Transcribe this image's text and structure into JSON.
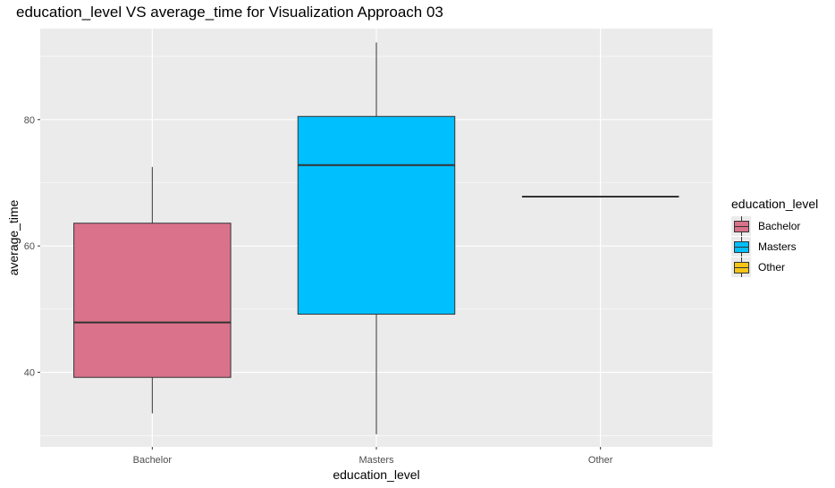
{
  "chart_data": {
    "type": "boxplot",
    "title": "education_level VS average_time for Visualization Approach 03",
    "xlabel": "education_level",
    "ylabel": "average_time",
    "categories": [
      "Bachelor",
      "Masters",
      "Other"
    ],
    "boxes": [
      {
        "category": "Bachelor",
        "min": 33.5,
        "q1": 39.2,
        "median": 47.9,
        "q3": 63.6,
        "max": 72.5,
        "color": "#d9728a"
      },
      {
        "category": "Masters",
        "min": 30.2,
        "q1": 49.2,
        "median": 72.8,
        "q3": 80.5,
        "max": 92.2,
        "color": "#00bfff"
      },
      {
        "category": "Other",
        "min": 67.8,
        "q1": 67.8,
        "median": 67.8,
        "q3": 67.8,
        "max": 67.8,
        "color": "#f5c518"
      }
    ],
    "y_ticks": [
      40,
      60,
      80
    ],
    "ylim": [
      28.2,
      94.4
    ],
    "grid": true,
    "legend": {
      "title": "education_level",
      "position": "right",
      "items": [
        {
          "label": "Bachelor",
          "color": "#d9728a"
        },
        {
          "label": "Masters",
          "color": "#00bfff"
        },
        {
          "label": "Other",
          "color": "#f5c518"
        }
      ]
    }
  }
}
